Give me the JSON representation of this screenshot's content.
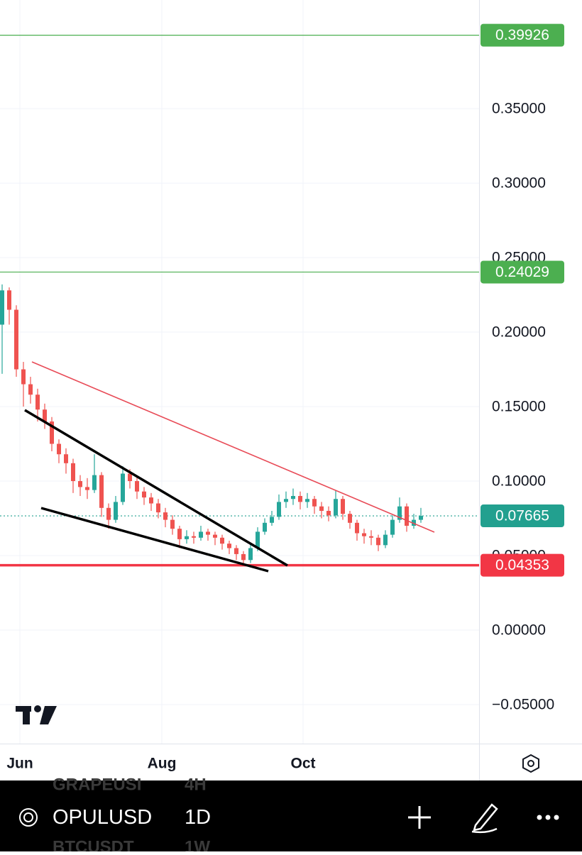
{
  "chart_data": {
    "type": "candlestick",
    "open": [
      0.205,
      0.228,
      0.215,
      0.175,
      0.165,
      0.158,
      0.148,
      0.14,
      0.125,
      0.118,
      0.112,
      0.1,
      0.096,
      0.094,
      0.104,
      0.082,
      0.074,
      0.086,
      0.105,
      0.1,
      0.093,
      0.089,
      0.085,
      0.079,
      0.074,
      0.068,
      0.061,
      0.063,
      0.062,
      0.066,
      0.064,
      0.062,
      0.058,
      0.055,
      0.051,
      0.047,
      0.055,
      0.066,
      0.072,
      0.076,
      0.086,
      0.088,
      0.09,
      0.086,
      0.088,
      0.083,
      0.08,
      0.077,
      0.088,
      0.078,
      0.072,
      0.065,
      0.063,
      0.062,
      0.057,
      0.064,
      0.074,
      0.083,
      0.07,
      0.074
    ],
    "high": [
      0.232,
      0.23,
      0.218,
      0.18,
      0.17,
      0.162,
      0.152,
      0.143,
      0.128,
      0.122,
      0.115,
      0.104,
      0.102,
      0.118,
      0.106,
      0.085,
      0.09,
      0.11,
      0.108,
      0.103,
      0.096,
      0.092,
      0.088,
      0.082,
      0.077,
      0.07,
      0.067,
      0.066,
      0.07,
      0.068,
      0.066,
      0.064,
      0.06,
      0.057,
      0.053,
      0.058,
      0.069,
      0.075,
      0.08,
      0.091,
      0.093,
      0.095,
      0.093,
      0.092,
      0.09,
      0.086,
      0.083,
      0.094,
      0.09,
      0.08,
      0.074,
      0.068,
      0.067,
      0.064,
      0.067,
      0.077,
      0.089,
      0.085,
      0.078,
      0.082
    ],
    "low": [
      0.172,
      0.205,
      0.17,
      0.15,
      0.152,
      0.14,
      0.135,
      0.12,
      0.112,
      0.105,
      0.092,
      0.09,
      0.088,
      0.092,
      0.076,
      0.068,
      0.072,
      0.084,
      0.095,
      0.088,
      0.084,
      0.08,
      0.075,
      0.069,
      0.064,
      0.055,
      0.058,
      0.058,
      0.06,
      0.06,
      0.057,
      0.054,
      0.051,
      0.047,
      0.044,
      0.045,
      0.053,
      0.064,
      0.07,
      0.074,
      0.082,
      0.084,
      0.081,
      0.082,
      0.078,
      0.075,
      0.073,
      0.075,
      0.074,
      0.068,
      0.06,
      0.058,
      0.057,
      0.053,
      0.055,
      0.062,
      0.072,
      0.066,
      0.068,
      0.072
    ],
    "close": [
      0.228,
      0.215,
      0.175,
      0.165,
      0.158,
      0.148,
      0.14,
      0.125,
      0.118,
      0.112,
      0.1,
      0.096,
      0.094,
      0.104,
      0.082,
      0.074,
      0.086,
      0.105,
      0.1,
      0.093,
      0.089,
      0.085,
      0.079,
      0.074,
      0.068,
      0.061,
      0.063,
      0.062,
      0.066,
      0.064,
      0.062,
      0.058,
      0.055,
      0.051,
      0.047,
      0.055,
      0.066,
      0.072,
      0.076,
      0.086,
      0.088,
      0.09,
      0.086,
      0.088,
      0.083,
      0.08,
      0.077,
      0.088,
      0.078,
      0.072,
      0.065,
      0.063,
      0.062,
      0.057,
      0.064,
      0.074,
      0.083,
      0.07,
      0.074,
      0.07665
    ],
    "up_color": "#26a69a",
    "down_color": "#ef5350",
    "xlim": [
      -0.3,
      67.2
    ],
    "xticks": [
      {
        "value": 2.5,
        "label": "Jun"
      },
      {
        "value": 22.5,
        "label": "Aug"
      },
      {
        "value": 42.4,
        "label": "Oct"
      }
    ],
    "ylim": [
      -0.0762,
      0.4229
    ],
    "yticks": [
      {
        "value": -0.05,
        "label": "−0.05000"
      },
      {
        "value": 0,
        "label": "0.00000"
      },
      {
        "value": 0.05,
        "label": "0.05000"
      },
      {
        "value": 0.1,
        "label": "0.10000"
      },
      {
        "value": 0.15,
        "label": "0.15000"
      },
      {
        "value": 0.2,
        "label": "0.20000"
      },
      {
        "value": 0.25,
        "label": "0.25000"
      },
      {
        "value": 0.3,
        "label": "0.30000"
      },
      {
        "value": 0.35,
        "label": "0.35000"
      }
    ],
    "grid": true,
    "price_lines": [
      {
        "value": 0.39926,
        "color": "#4caf50",
        "style": "solid"
      },
      {
        "value": 0.24029,
        "color": "#4caf50",
        "style": "solid"
      },
      {
        "value": 0.07665,
        "color": "#22a08f",
        "style": "dotted"
      },
      {
        "value": 0.04353,
        "color": "#f23645",
        "style": "bold"
      }
    ]
  },
  "toolbar": {
    "prev": {
      "symbol": "GRAPEUSI",
      "interval": "4H"
    },
    "current": {
      "symbol": "OPULUSD",
      "interval": "1D"
    },
    "next": {
      "symbol": "BTCUSDT",
      "interval": "1W"
    }
  }
}
